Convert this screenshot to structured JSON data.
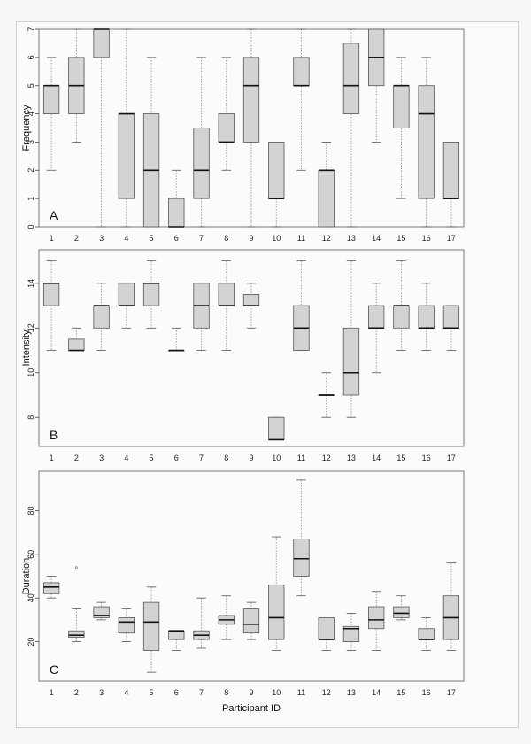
{
  "chart_data": [
    {
      "type": "boxplot",
      "panel": "A",
      "ylabel": "Frequency",
      "ylim": [
        0,
        7
      ],
      "yticks": [
        0,
        1,
        2,
        3,
        4,
        5,
        6,
        7
      ],
      "categories": [
        "1",
        "2",
        "3",
        "4",
        "5",
        "6",
        "7",
        "8",
        "9",
        "10",
        "11",
        "12",
        "13",
        "14",
        "15",
        "16",
        "17"
      ],
      "boxes": [
        {
          "min": 2,
          "q1": 4,
          "median": 5,
          "q3": 5,
          "max": 6
        },
        {
          "min": 3,
          "q1": 4,
          "median": 5,
          "q3": 6,
          "max": 7
        },
        {
          "min": 0,
          "q1": 6,
          "median": 7,
          "q3": 7,
          "max": 7
        },
        {
          "min": 0,
          "q1": 1,
          "median": 4,
          "q3": 4,
          "max": 7
        },
        {
          "min": 0,
          "q1": 0,
          "median": 2,
          "q3": 4,
          "max": 6
        },
        {
          "min": 0,
          "q1": 0,
          "median": 0,
          "q3": 1,
          "max": 2
        },
        {
          "min": 0,
          "q1": 1,
          "median": 2,
          "q3": 3.5,
          "max": 6
        },
        {
          "min": 2,
          "q1": 3,
          "median": 3,
          "q3": 4,
          "max": 6
        },
        {
          "min": 0,
          "q1": 3,
          "median": 5,
          "q3": 6,
          "max": 7
        },
        {
          "min": 0,
          "q1": 1,
          "median": 1,
          "q3": 3,
          "max": 3
        },
        {
          "min": 2,
          "q1": 5,
          "median": 5,
          "q3": 6,
          "max": 7
        },
        {
          "min": 0,
          "q1": 0,
          "median": 2,
          "q3": 2,
          "max": 3
        },
        {
          "min": 0,
          "q1": 4,
          "median": 5,
          "q3": 6.5,
          "max": 7
        },
        {
          "min": 3,
          "q1": 5,
          "median": 6,
          "q3": 7,
          "max": 7
        },
        {
          "min": 1,
          "q1": 3.5,
          "median": 5,
          "q3": 5,
          "max": 6
        },
        {
          "min": 0,
          "q1": 1,
          "median": 4,
          "q3": 5,
          "max": 6
        },
        {
          "min": 0,
          "q1": 1,
          "median": 1,
          "q3": 3,
          "max": 3
        }
      ]
    },
    {
      "type": "boxplot",
      "panel": "B",
      "ylabel": "Intensity",
      "ylim": [
        6.7,
        15.5
      ],
      "yticks": [
        8,
        10,
        12,
        14
      ],
      "categories": [
        "1",
        "2",
        "3",
        "4",
        "5",
        "6",
        "7",
        "8",
        "9",
        "10",
        "11",
        "12",
        "13",
        "14",
        "15",
        "16",
        "17"
      ],
      "boxes": [
        {
          "min": 11,
          "q1": 13,
          "median": 14,
          "q3": 14,
          "max": 15
        },
        {
          "min": 11,
          "q1": 11,
          "median": 11,
          "q3": 11.5,
          "max": 12
        },
        {
          "min": 11,
          "q1": 12,
          "median": 13,
          "q3": 13,
          "max": 14
        },
        {
          "min": 12,
          "q1": 13,
          "median": 13,
          "q3": 14,
          "max": 14
        },
        {
          "min": 12,
          "q1": 13,
          "median": 14,
          "q3": 14,
          "max": 15
        },
        {
          "min": 11,
          "q1": 11,
          "median": 11,
          "q3": 11,
          "max": 12
        },
        {
          "min": 11,
          "q1": 12,
          "median": 13,
          "q3": 14,
          "max": 14
        },
        {
          "min": 11,
          "q1": 13,
          "median": 13,
          "q3": 14,
          "max": 15
        },
        {
          "min": 12,
          "q1": 13,
          "median": 13,
          "q3": 13.5,
          "max": 14
        },
        {
          "min": 7,
          "q1": 7,
          "median": 7,
          "q3": 8,
          "max": 8
        },
        {
          "min": 11,
          "q1": 11,
          "median": 12,
          "q3": 13,
          "max": 15
        },
        {
          "min": 8,
          "q1": 9,
          "median": 9,
          "q3": 9,
          "max": 10
        },
        {
          "min": 8,
          "q1": 9,
          "median": 10,
          "q3": 12,
          "max": 15
        },
        {
          "min": 10,
          "q1": 12,
          "median": 12,
          "q3": 13,
          "max": 14
        },
        {
          "min": 11,
          "q1": 12,
          "median": 13,
          "q3": 13,
          "max": 15
        },
        {
          "min": 11,
          "q1": 12,
          "median": 12,
          "q3": 13,
          "max": 14
        },
        {
          "min": 11,
          "q1": 12,
          "median": 12,
          "q3": 13,
          "max": 13
        }
      ]
    },
    {
      "type": "boxplot",
      "panel": "C",
      "ylabel": "Duration",
      "xlabel": "Participant ID",
      "ylim": [
        2,
        98
      ],
      "yticks": [
        20,
        40,
        60,
        80
      ],
      "categories": [
        "1",
        "2",
        "3",
        "4",
        "5",
        "6",
        "7",
        "8",
        "9",
        "10",
        "11",
        "12",
        "13",
        "14",
        "15",
        "16",
        "17"
      ],
      "boxes": [
        {
          "min": 40,
          "q1": 42,
          "median": 45,
          "q3": 47,
          "max": 50
        },
        {
          "min": 20,
          "q1": 22,
          "median": 23,
          "q3": 25,
          "max": 35,
          "outliers": [
            54
          ]
        },
        {
          "min": 30,
          "q1": 31,
          "median": 32,
          "q3": 36,
          "max": 38
        },
        {
          "min": 20,
          "q1": 24,
          "median": 29,
          "q3": 31,
          "max": 35
        },
        {
          "min": 6,
          "q1": 16,
          "median": 29,
          "q3": 38,
          "max": 45
        },
        {
          "min": 16,
          "q1": 21,
          "median": 25,
          "q3": 25,
          "max": 25
        },
        {
          "min": 17,
          "q1": 21,
          "median": 23,
          "q3": 25,
          "max": 40
        },
        {
          "min": 21,
          "q1": 28,
          "median": 30,
          "q3": 32,
          "max": 41
        },
        {
          "min": 21,
          "q1": 24,
          "median": 28,
          "q3": 35,
          "max": 38
        },
        {
          "min": 16,
          "q1": 21,
          "median": 31,
          "q3": 46,
          "max": 68
        },
        {
          "min": 41,
          "q1": 50,
          "median": 58,
          "q3": 67,
          "max": 94
        },
        {
          "min": 16,
          "q1": 21,
          "median": 21,
          "q3": 31,
          "max": 31
        },
        {
          "min": 16,
          "q1": 20,
          "median": 26,
          "q3": 27,
          "max": 33
        },
        {
          "min": 16,
          "q1": 26,
          "median": 30,
          "q3": 36,
          "max": 43
        },
        {
          "min": 30,
          "q1": 31,
          "median": 33,
          "q3": 36,
          "max": 41
        },
        {
          "min": 16,
          "q1": 21,
          "median": 21,
          "q3": 26,
          "max": 31
        },
        {
          "min": 16,
          "q1": 21,
          "median": 31,
          "q3": 41,
          "max": 56
        }
      ]
    }
  ],
  "colors": {
    "box_fill": "#d3d3d3",
    "box_stroke": "#555555",
    "median": "#111111",
    "whisker": "#8a8a8a",
    "frame": "#7a7a7a"
  }
}
